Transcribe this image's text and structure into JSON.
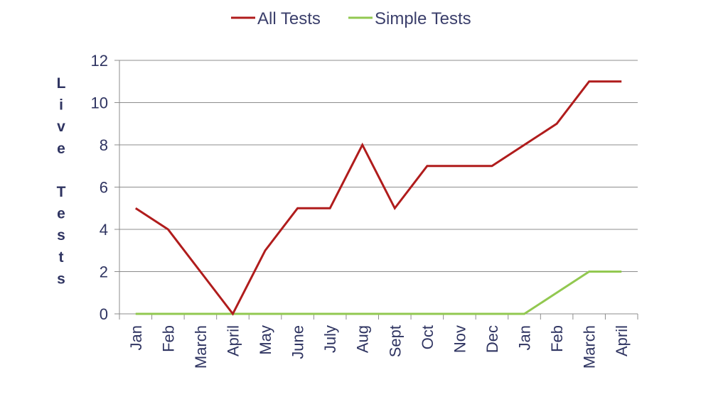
{
  "chart_data": {
    "type": "line",
    "title": "",
    "xlabel": "",
    "ylabel": "Live Tests",
    "ylim": [
      0,
      12
    ],
    "yticks": [
      0,
      2,
      4,
      6,
      8,
      10,
      12
    ],
    "categories": [
      "Jan",
      "Feb",
      "March",
      "April",
      "May",
      "June",
      "July",
      "Aug",
      "Sept",
      "Oct",
      "Nov",
      "Dec",
      "Jan",
      "Feb",
      "March",
      "April"
    ],
    "series": [
      {
        "name": "All Tests",
        "color": "#b01c1c",
        "values": [
          5,
          4,
          2,
          0,
          3,
          5,
          5,
          8,
          5,
          7,
          7,
          7,
          8,
          9,
          11,
          11
        ]
      },
      {
        "name": "Simple Tests",
        "color": "#92c850",
        "values": [
          0,
          0,
          0,
          0,
          0,
          0,
          0,
          0,
          0,
          0,
          0,
          0,
          0,
          1,
          2,
          2
        ]
      }
    ],
    "grid": true,
    "legend_position": "top-center"
  }
}
